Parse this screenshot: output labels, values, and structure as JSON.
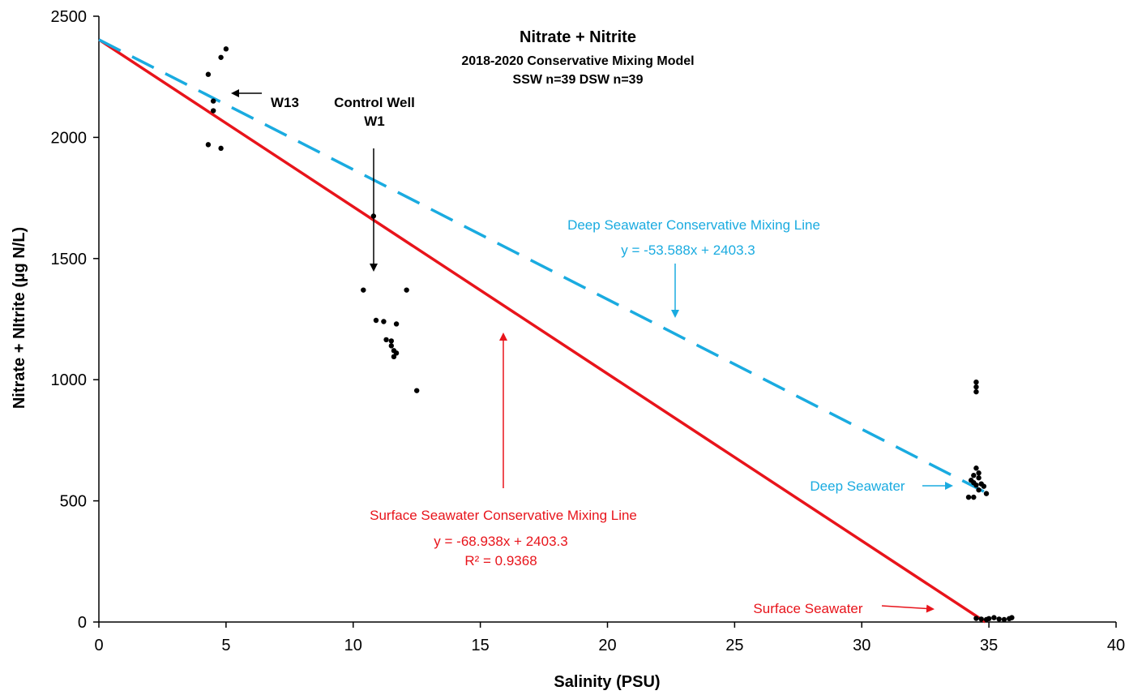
{
  "chart_data": {
    "type": "scatter",
    "title": "Nitrate + Nitrite",
    "subtitle_lines": [
      "2018-2020 Conservative Mixing Model",
      "SSW  n=39  DSW n=39"
    ],
    "xlabel": "Salinity (PSU)",
    "ylabel": "Nitrate + NItrite (µg N/L)",
    "xlim": [
      0,
      40
    ],
    "ylim": [
      0,
      2500
    ],
    "xticks": [
      0,
      5,
      10,
      15,
      20,
      25,
      30,
      35,
      40
    ],
    "yticks": [
      0,
      500,
      1000,
      1500,
      2000,
      2500
    ],
    "grid": false,
    "legend": "none",
    "colors": {
      "points": "#000000",
      "surface_line": "#e8141b",
      "deep_line": "#1aabe0",
      "axis": "#000000"
    },
    "series": [
      {
        "kind": "points",
        "values": [
          [
            4.3,
            2260
          ],
          [
            4.5,
            2150
          ],
          [
            4.5,
            2110
          ],
          [
            4.8,
            2330
          ],
          [
            5.0,
            2365
          ],
          [
            4.3,
            1970
          ],
          [
            4.8,
            1955
          ],
          [
            10.8,
            1675
          ],
          [
            10.4,
            1370
          ],
          [
            12.1,
            1370
          ],
          [
            10.9,
            1245
          ],
          [
            11.2,
            1240
          ],
          [
            11.7,
            1230
          ],
          [
            11.3,
            1165
          ],
          [
            11.5,
            1160
          ],
          [
            11.5,
            1140
          ],
          [
            11.6,
            1120
          ],
          [
            11.7,
            1110
          ],
          [
            11.6,
            1095
          ],
          [
            12.5,
            955
          ],
          [
            34.5,
            990
          ],
          [
            34.5,
            970
          ],
          [
            34.5,
            950
          ],
          [
            34.5,
            635
          ],
          [
            34.6,
            615
          ],
          [
            34.4,
            605
          ],
          [
            34.6,
            595
          ],
          [
            34.3,
            585
          ],
          [
            34.4,
            575
          ],
          [
            34.5,
            565
          ],
          [
            34.7,
            570
          ],
          [
            34.8,
            560
          ],
          [
            34.6,
            545
          ],
          [
            34.9,
            530
          ],
          [
            34.2,
            515
          ],
          [
            34.4,
            515
          ],
          [
            34.5,
            15
          ],
          [
            34.7,
            12
          ],
          [
            35.0,
            14
          ],
          [
            35.2,
            18
          ],
          [
            35.4,
            12
          ],
          [
            35.6,
            10
          ],
          [
            35.8,
            14
          ],
          [
            35.9,
            18
          ],
          [
            34.9,
            10
          ]
        ]
      },
      {
        "kind": "line",
        "name": "Surface Seawater Conservative Mixing Line",
        "equation": "y = -68.938x + 2403.3",
        "r2": "R² = 0.9368",
        "slope": -68.938,
        "intercept": 2403.3,
        "x_range": [
          0,
          34.86
        ],
        "dash": false
      },
      {
        "kind": "line",
        "name": "Deep Seawater Conservative Mixing Line",
        "equation": "y = -53.588x + 2403.3",
        "slope": -53.588,
        "intercept": 2403.3,
        "x_range": [
          0,
          34.8
        ],
        "dash": true
      }
    ],
    "annotations": {
      "w13": "W13",
      "control_well_line1": "Control Well",
      "control_well_line2": "W1",
      "deep_seawater": "Deep Seawater",
      "surface_seawater": "Surface Seawater"
    }
  }
}
